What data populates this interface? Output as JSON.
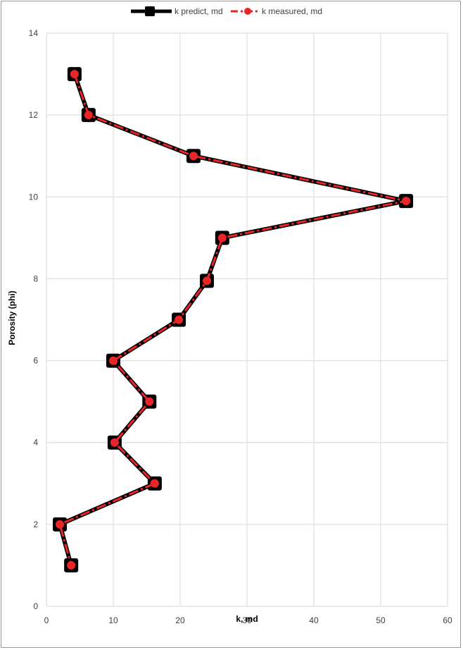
{
  "chart_data": {
    "type": "line",
    "title": "",
    "xlabel": "k, md",
    "ylabel": "Porosity (phi)",
    "xlim": [
      0,
      60
    ],
    "ylim": [
      0,
      14
    ],
    "xticks": [
      "0",
      "10",
      "20",
      "30",
      "40",
      "50",
      "60"
    ],
    "yticks": [
      "0",
      "2",
      "4",
      "6",
      "8",
      "10",
      "12",
      "14"
    ],
    "grid": true,
    "legend_position": "top",
    "series": [
      {
        "name": "k predict, md",
        "color": "#000000",
        "marker": "square",
        "line": "solid",
        "points": [
          {
            "x": 4.2,
            "y": 13.0
          },
          {
            "x": 6.3,
            "y": 12.0
          },
          {
            "x": 22.0,
            "y": 11.0
          },
          {
            "x": 53.8,
            "y": 9.9
          },
          {
            "x": 26.3,
            "y": 9.0
          },
          {
            "x": 24.0,
            "y": 7.95
          },
          {
            "x": 19.8,
            "y": 7.0
          },
          {
            "x": 10.0,
            "y": 6.0
          },
          {
            "x": 15.4,
            "y": 5.0
          },
          {
            "x": 10.2,
            "y": 4.0
          },
          {
            "x": 16.2,
            "y": 3.0
          },
          {
            "x": 2.0,
            "y": 2.0
          },
          {
            "x": 3.7,
            "y": 1.0
          }
        ]
      },
      {
        "name": "k measured, md",
        "color": "#e8262a",
        "marker": "circle",
        "line": "dash-dot",
        "points": [
          {
            "x": 4.2,
            "y": 13.0
          },
          {
            "x": 6.3,
            "y": 12.0
          },
          {
            "x": 22.0,
            "y": 11.0
          },
          {
            "x": 53.8,
            "y": 9.9
          },
          {
            "x": 26.3,
            "y": 9.0
          },
          {
            "x": 24.0,
            "y": 7.95
          },
          {
            "x": 19.8,
            "y": 7.0
          },
          {
            "x": 10.0,
            "y": 6.0
          },
          {
            "x": 15.4,
            "y": 5.0
          },
          {
            "x": 10.2,
            "y": 4.0
          },
          {
            "x": 16.2,
            "y": 3.0
          },
          {
            "x": 2.0,
            "y": 2.0
          },
          {
            "x": 3.7,
            "y": 1.0
          }
        ]
      }
    ]
  }
}
